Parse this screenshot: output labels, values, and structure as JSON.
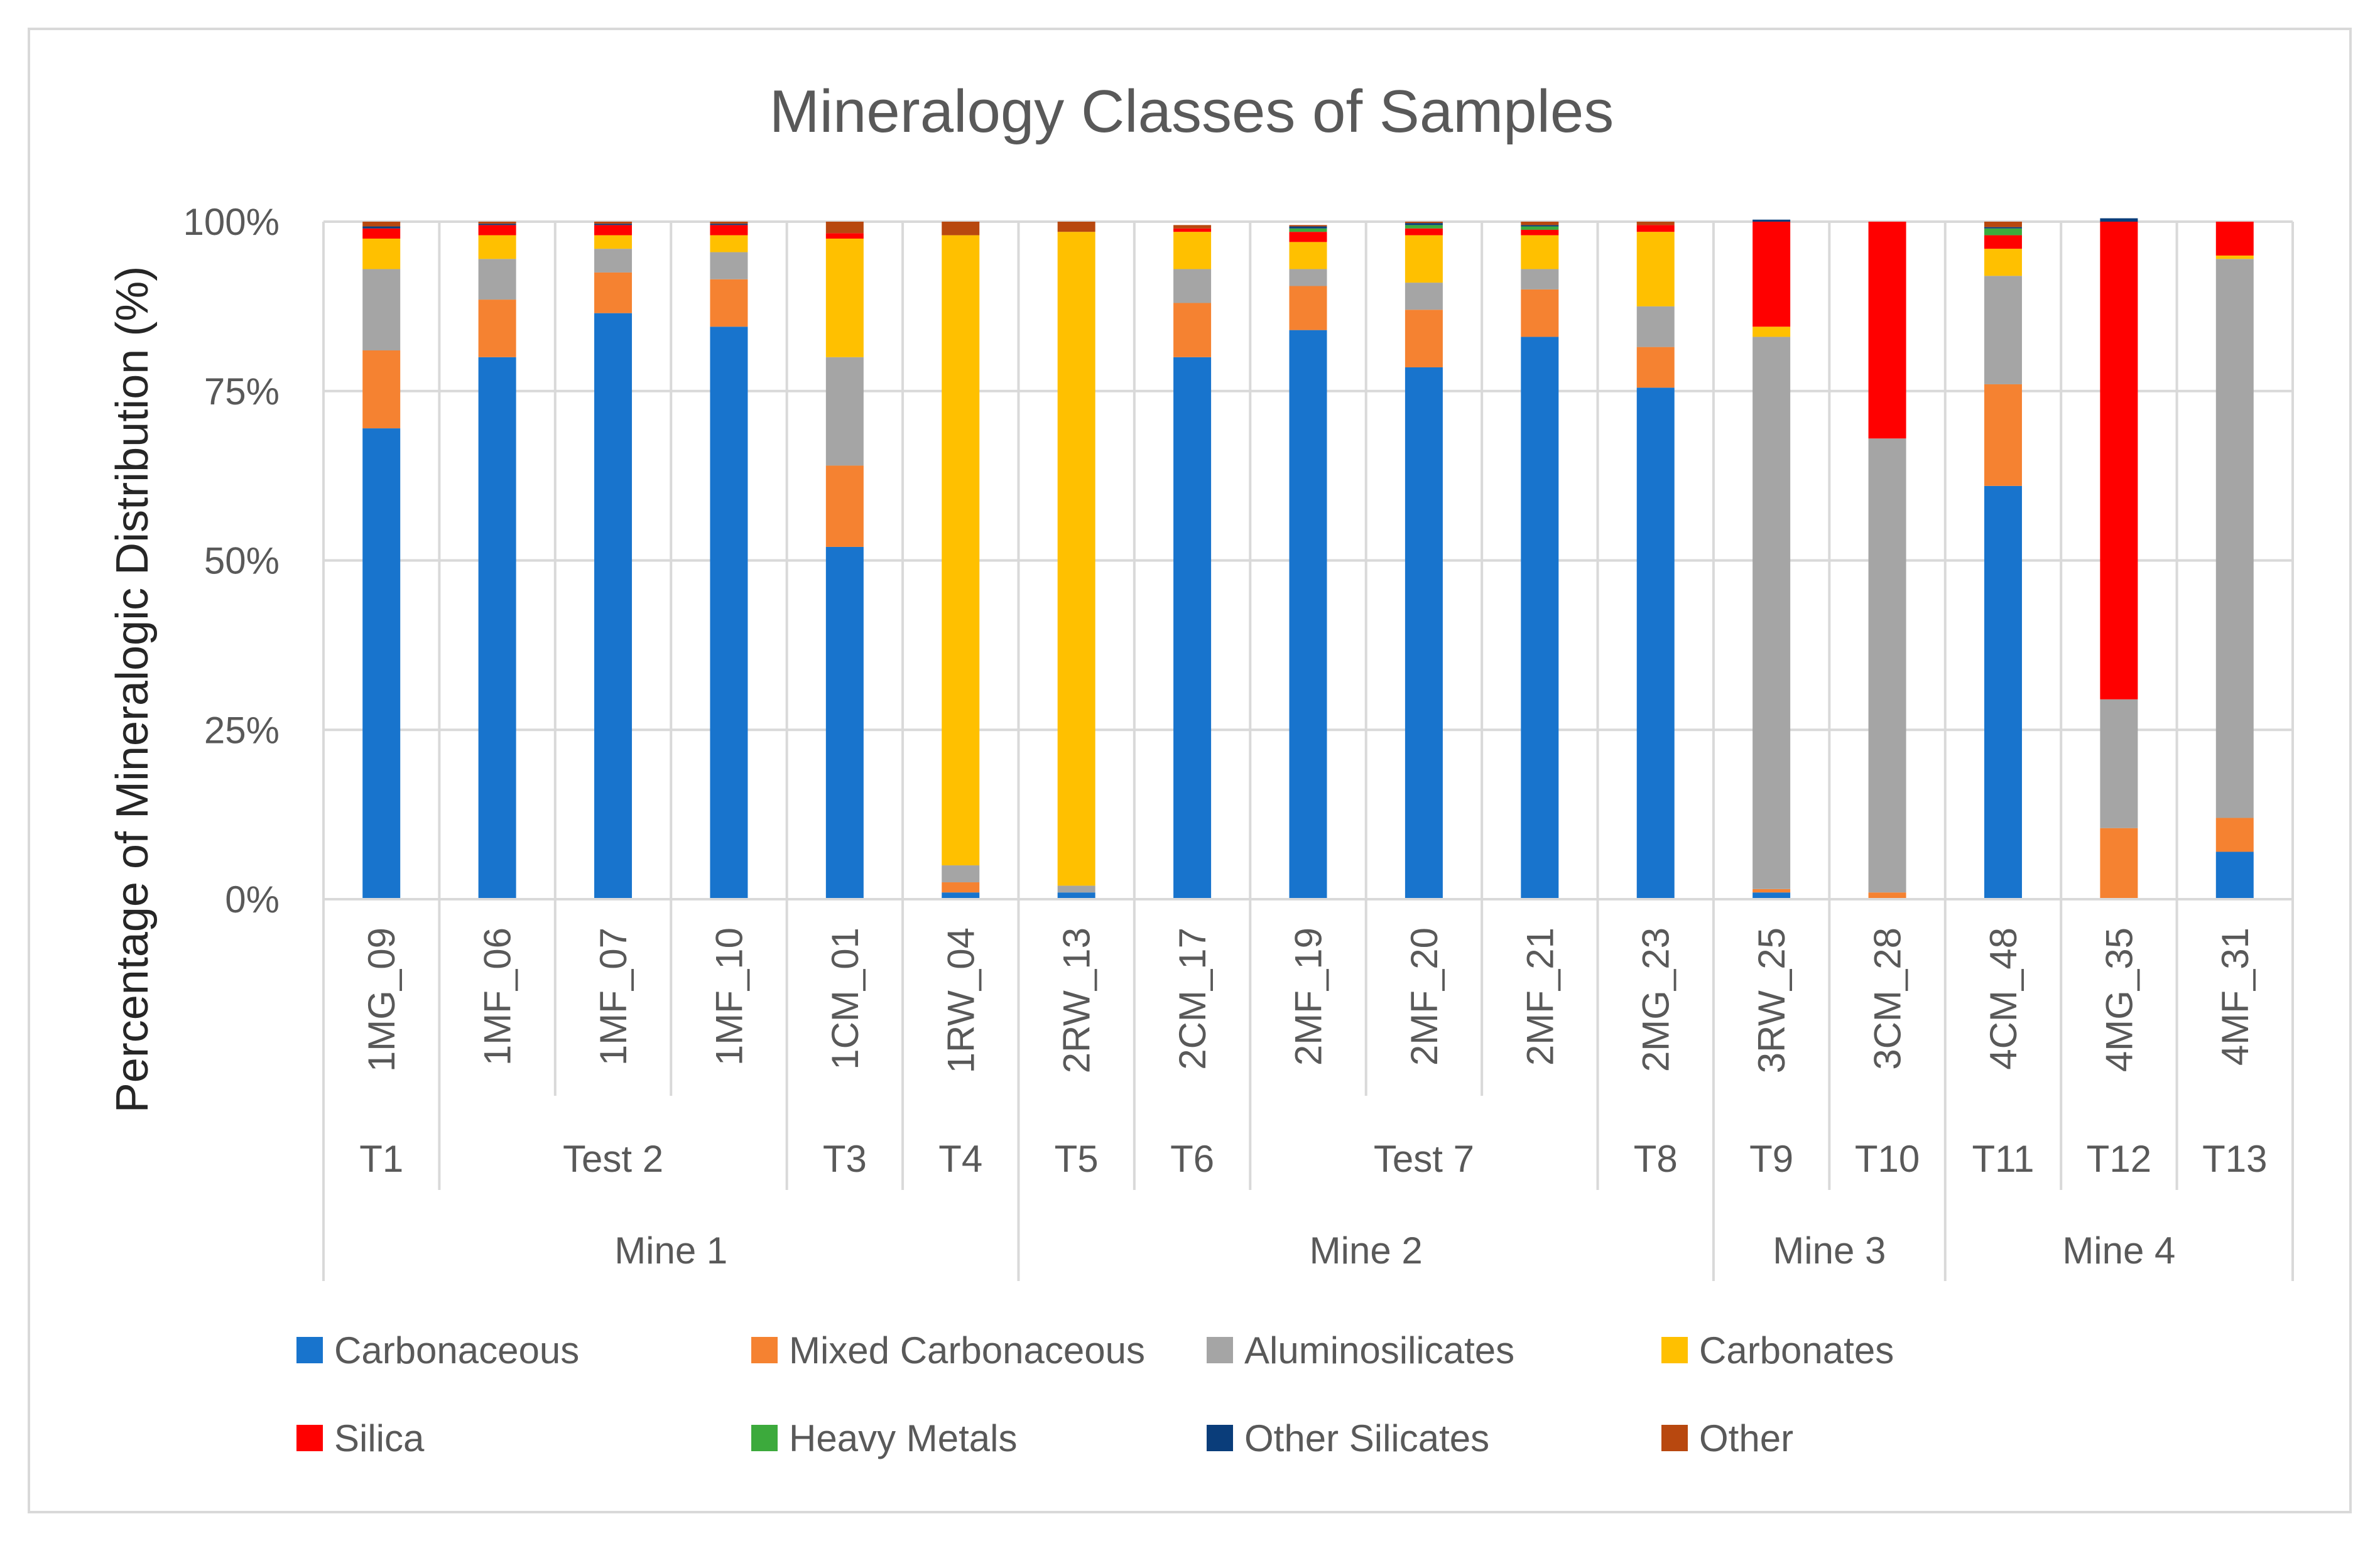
{
  "chart_data": {
    "type": "bar",
    "stacked": true,
    "normalized_percent": true,
    "title": "Mineralogy Classes of Samples",
    "xlabel": "",
    "ylabel": "Percentage of Mineralogic Distribution (%)",
    "ylim": [
      0,
      100
    ],
    "y_ticks": [
      "0%",
      "25%",
      "50%",
      "75%",
      "100%"
    ],
    "grid": true,
    "legend_position": "bottom",
    "categories": [
      "1MG_09",
      "1MF_06",
      "1MF_07",
      "1MF_10",
      "1CM_01",
      "1RW_04",
      "2RW_13",
      "2CM_17",
      "2MF_19",
      "2MF_20",
      "2MF_21",
      "2MG_23",
      "3RW_25",
      "3CM_28",
      "4CM_48",
      "4MG_35",
      "4MF_31"
    ],
    "tests": [
      {
        "label": "T1",
        "span": 1
      },
      {
        "label": "Test 2",
        "span": 3
      },
      {
        "label": "T3",
        "span": 1
      },
      {
        "label": "T4",
        "span": 1
      },
      {
        "label": "T5",
        "span": 1
      },
      {
        "label": "T6",
        "span": 1
      },
      {
        "label": "Test 7",
        "span": 3
      },
      {
        "label": "T8",
        "span": 1
      },
      {
        "label": "T9",
        "span": 1
      },
      {
        "label": "T10",
        "span": 1
      },
      {
        "label": "T11",
        "span": 1
      },
      {
        "label": "T12",
        "span": 1
      },
      {
        "label": "T13",
        "span": 1
      }
    ],
    "mines": [
      {
        "label": "Mine 1",
        "span": 6
      },
      {
        "label": "Mine 2",
        "span": 6
      },
      {
        "label": "Mine 3",
        "span": 2
      },
      {
        "label": "Mine 4",
        "span": 3
      }
    ],
    "series": [
      {
        "name": "Carbonaceous",
        "color": "#1874CD",
        "values": [
          69.5,
          80,
          86.5,
          84.5,
          52,
          1,
          1,
          80,
          84,
          78.5,
          83,
          75.5,
          1,
          0,
          61,
          0,
          7
        ]
      },
      {
        "name": "Mixed Carbonaceous",
        "color": "#F58231",
        "values": [
          11.5,
          8.5,
          6,
          7,
          12,
          1.5,
          0,
          8,
          6.5,
          8.5,
          7,
          6,
          0.5,
          1,
          15,
          10.5,
          5
        ]
      },
      {
        "name": "Aluminosilicates",
        "color": "#A5A5A5",
        "values": [
          12,
          6,
          3.5,
          4,
          16,
          2.5,
          1,
          5,
          2.5,
          4,
          3,
          6,
          81.5,
          67,
          16,
          19,
          82.5
        ]
      },
      {
        "name": "Carbonates",
        "color": "#FFC000",
        "values": [
          4.5,
          3.5,
          2,
          2.5,
          17.5,
          93,
          96.5,
          5.5,
          4,
          7,
          5,
          11,
          1.5,
          0,
          4,
          0,
          0.5
        ]
      },
      {
        "name": "Silica",
        "color": "#FF0000",
        "values": [
          1.5,
          1.5,
          1.5,
          1.5,
          0.8,
          0,
          0,
          0.5,
          1.5,
          1,
          0.8,
          1,
          15.5,
          32,
          2,
          70.5,
          5
        ]
      },
      {
        "name": "Heavy Metals",
        "color": "#3CAA3C",
        "values": [
          0,
          0,
          0,
          0,
          0,
          0,
          0,
          0,
          0.5,
          0.5,
          0.5,
          0,
          0,
          0,
          1,
          0,
          0
        ]
      },
      {
        "name": "Other Silicates",
        "color": "#0A3D7A",
        "values": [
          0.3,
          0.2,
          0.2,
          0.2,
          0,
          0,
          0,
          0,
          0.3,
          0.3,
          0.2,
          0,
          0.3,
          0,
          0.2,
          0.5,
          0
        ]
      },
      {
        "name": "Other",
        "color": "#B8480F",
        "values": [
          0.7,
          0.3,
          0.3,
          0.3,
          1.7,
          2,
          1.5,
          0.5,
          0.2,
          0.2,
          0.5,
          0.5,
          0,
          0,
          0.8,
          0,
          0
        ]
      }
    ]
  }
}
